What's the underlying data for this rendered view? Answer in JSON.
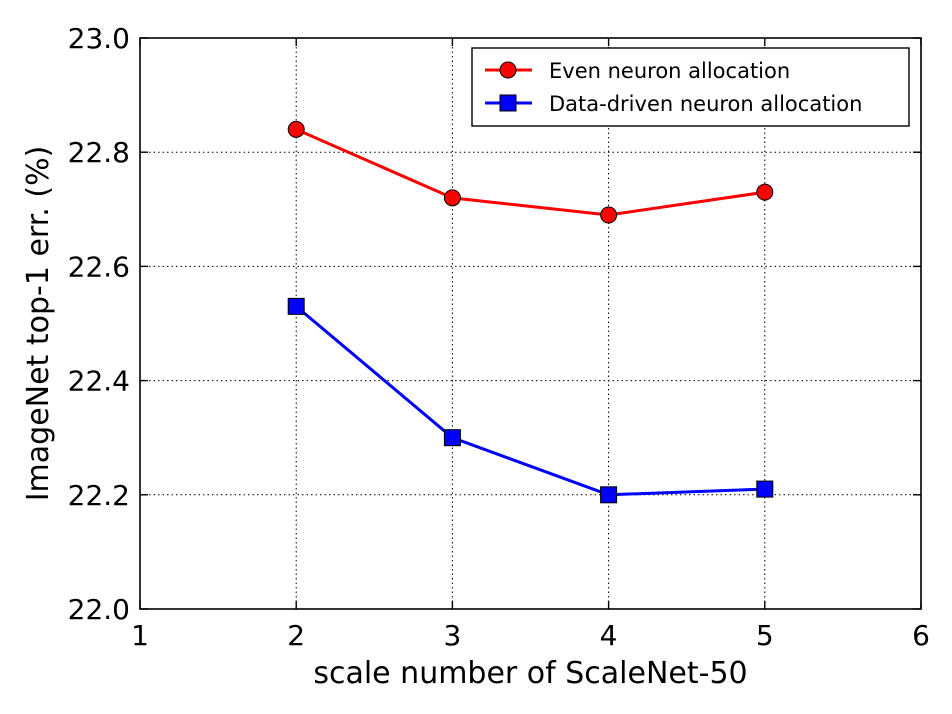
{
  "chart_data": {
    "type": "line",
    "title": "",
    "xlabel": "scale number of ScaleNet-50",
    "ylabel": "ImageNet top-1 err. (%)",
    "xlim": [
      1,
      6
    ],
    "ylim": [
      22.0,
      23.0
    ],
    "xticks": [
      1,
      2,
      3,
      4,
      5,
      6
    ],
    "yticks": [
      22.0,
      22.2,
      22.4,
      22.6,
      22.8,
      23.0
    ],
    "xtick_labels": [
      "1",
      "2",
      "3",
      "4",
      "5",
      "6"
    ],
    "ytick_labels": [
      "22.0",
      "22.2",
      "22.4",
      "22.6",
      "22.8",
      "23.0"
    ],
    "grid": true,
    "legend_position": "top-right",
    "x": [
      2,
      3,
      4,
      5
    ],
    "series": [
      {
        "name": "Even neuron allocation",
        "color": "#ff0000",
        "marker": "circle",
        "values": [
          22.84,
          22.72,
          22.69,
          22.73
        ]
      },
      {
        "name": "Data-driven neuron allocation",
        "color": "#0000ff",
        "marker": "square",
        "values": [
          22.53,
          22.3,
          22.2,
          22.21
        ]
      }
    ]
  }
}
